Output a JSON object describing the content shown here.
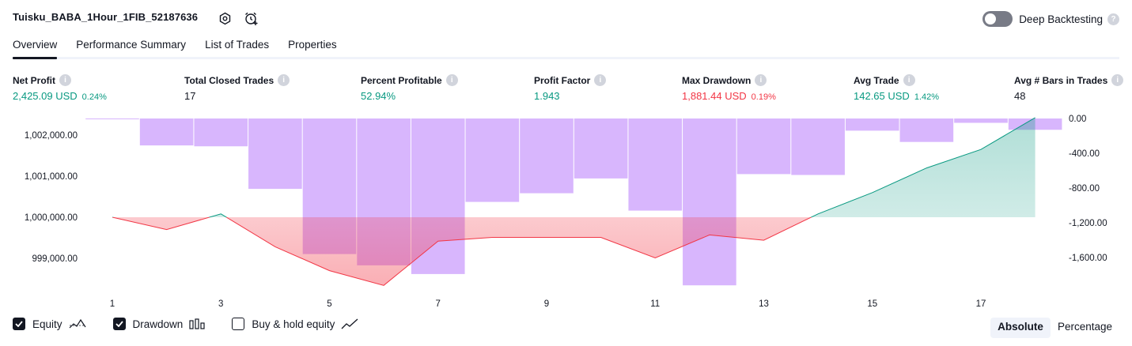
{
  "header": {
    "title": "Tuisku_BABA_1Hour_1FIB_52187636",
    "deep_backtesting_label": "Deep Backtesting"
  },
  "tabs": [
    {
      "label": "Overview",
      "active": true
    },
    {
      "label": "Performance Summary",
      "active": false
    },
    {
      "label": "List of Trades",
      "active": false
    },
    {
      "label": "Properties",
      "active": false
    }
  ],
  "metrics": [
    {
      "label": "Net Profit",
      "value": "2,425.09 USD",
      "pct": "0.24%",
      "color": "#089981"
    },
    {
      "label": "Total Closed Trades",
      "value": "17",
      "pct": "",
      "color": "#131722"
    },
    {
      "label": "Percent Profitable",
      "value": "52.94%",
      "pct": "",
      "color": "#089981"
    },
    {
      "label": "Profit Factor",
      "value": "1.943",
      "pct": "",
      "color": "#089981"
    },
    {
      "label": "Max Drawdown",
      "value": "1,881.44 USD",
      "pct": "0.19%",
      "color": "#f23645"
    },
    {
      "label": "Avg Trade",
      "value": "142.65 USD",
      "pct": "1.42%",
      "color": "#089981"
    },
    {
      "label": "Avg # Bars in Trades",
      "value": "48",
      "pct": "",
      "color": "#131722"
    }
  ],
  "chart_data": {
    "type": "line+bar",
    "x_ticks": [
      1,
      3,
      5,
      7,
      9,
      11,
      13,
      15,
      17
    ],
    "left_axis": {
      "ticks": [
        "1,002,000.00",
        "1,001,000.00",
        "1,000,000.00",
        "999,000.00"
      ],
      "ylim": [
        998400,
        1002400
      ]
    },
    "right_axis": {
      "ticks": [
        "0.00",
        "-400.00",
        "-800.00",
        "-1,200.00",
        "-1,600.00"
      ],
      "ylim": [
        -1950,
        0
      ]
    },
    "equity": {
      "baseline": 1000000,
      "x": [
        1,
        2,
        3,
        4,
        5,
        6,
        7,
        8,
        9,
        10,
        11,
        12,
        13,
        14,
        15,
        16,
        17,
        18
      ],
      "values": [
        1000000,
        999700,
        1000080,
        999280,
        998700,
        998340,
        999420,
        999510,
        999510,
        999510,
        999010,
        999570,
        999440,
        1000080,
        1000600,
        1001200,
        1001650,
        1002425
      ]
    },
    "drawdown": {
      "x": [
        0,
        1,
        2,
        3,
        4,
        5,
        6,
        7,
        8,
        9,
        10,
        11,
        12,
        13,
        14,
        15,
        16,
        17,
        18
      ],
      "values": [
        0,
        0,
        -310,
        -320,
        -810,
        -1560,
        -1690,
        -1790,
        -960,
        -860,
        -690,
        -1060,
        -1920,
        -640,
        -650,
        -140,
        -270,
        -50,
        -130
      ]
    },
    "colors": {
      "equity_up": "#089981",
      "equity_down": "#f23645",
      "drawdown": "#d8b6fd"
    }
  },
  "footer": {
    "equity_label": "Equity",
    "drawdown_label": "Drawdown",
    "buyhold_label": "Buy & hold equity",
    "absolute_label": "Absolute",
    "percentage_label": "Percentage"
  }
}
